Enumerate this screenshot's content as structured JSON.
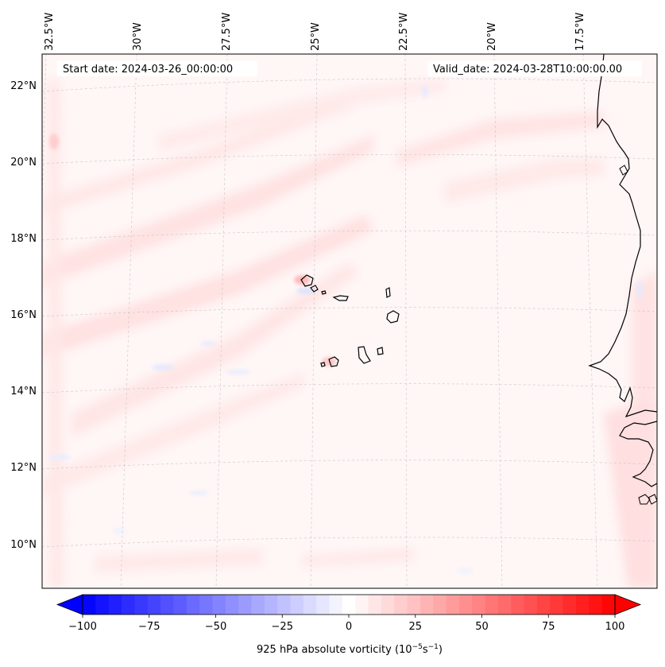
{
  "map": {
    "start_date": "Start date: 2024-03-26_00:00:00",
    "valid_date": "Valid_date: 2024-03-28T10:00:00.00",
    "lon_labels": [
      "32.5°W",
      "30°W",
      "27.5°W",
      "25°W",
      "22.5°W",
      "20°W",
      "17.5°W"
    ],
    "lat_labels": [
      "22°N",
      "20°N",
      "18°N",
      "16°N",
      "14°N",
      "12°N",
      "10°N"
    ],
    "field": "925 hPa absolute vorticity",
    "region": "Cabo Verde / West Africa coast"
  },
  "colorbar": {
    "label_prefix": "925 hPa absolute vorticity (10",
    "label_exp1": "−5",
    "label_mid": "s",
    "label_exp2": "−1",
    "label_suffix": ")",
    "ticks": [
      "−100",
      "−75",
      "−50",
      "−25",
      "0",
      "25",
      "50",
      "75",
      "100"
    ],
    "min": -100,
    "max": 100,
    "levels": 41,
    "colors": {
      "negative": "#0000ff",
      "neutral": "#ffffff",
      "positive": "#ff0000"
    }
  }
}
